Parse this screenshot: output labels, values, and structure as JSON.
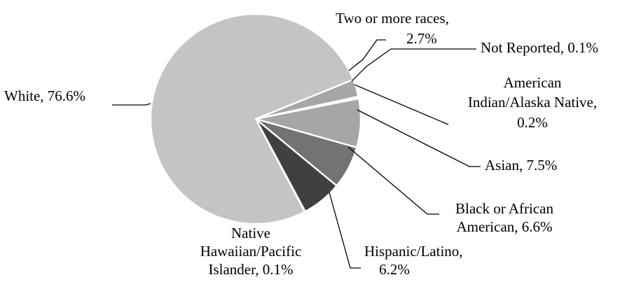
{
  "chart_data": {
    "type": "pie",
    "title": "",
    "slices": [
      {
        "label": [
          "Two or more races,",
          "2.7%"
        ],
        "value": 2.7,
        "color": "#a6a6a6"
      },
      {
        "label": [
          "Not Reported, 0.1%"
        ],
        "value": 0.1,
        "color": "#d9d9d9"
      },
      {
        "label": [
          "American",
          "Indian/Alaska Native,",
          "0.2%"
        ],
        "value": 0.2,
        "color": "#bfbfbf"
      },
      {
        "label": [
          "Asian, 7.5%"
        ],
        "value": 7.5,
        "color": "#a6a6a6"
      },
      {
        "label": [
          "Black or African",
          "American, 6.6%"
        ],
        "value": 6.6,
        "color": "#737373"
      },
      {
        "label": [
          "Hispanic/Latino,",
          "6.2%"
        ],
        "value": 6.2,
        "color": "#404040"
      },
      {
        "label": [
          "Native",
          "Hawaiian/Pacific",
          "Islander, 0.1%"
        ],
        "value": 0.1,
        "color": "#595959"
      },
      {
        "label": [
          "White, 76.6%"
        ],
        "value": 76.6,
        "color": "#c4c4c4"
      }
    ]
  }
}
